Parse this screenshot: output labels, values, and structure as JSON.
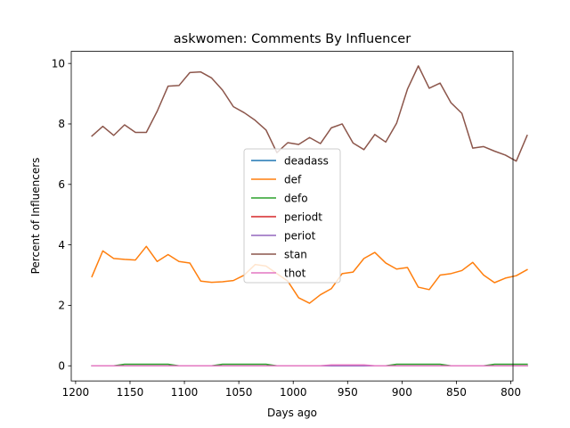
{
  "chart_data": {
    "type": "line",
    "title": "askwomen: Comments By Influencer",
    "xlabel": "Days ago",
    "ylabel": "Percent of Influencers",
    "xlim": [
      1204,
      798
    ],
    "ylim": [
      -0.5,
      10.4
    ],
    "x_ticks": [
      1200,
      1150,
      1100,
      1050,
      1000,
      950,
      900,
      850,
      800
    ],
    "y_ticks": [
      0,
      2,
      4,
      6,
      8,
      10
    ],
    "grid": false,
    "legend": "center",
    "x": [
      1185,
      1175,
      1165,
      1155,
      1145,
      1135,
      1125,
      1115,
      1105,
      1095,
      1085,
      1075,
      1065,
      1055,
      1045,
      1035,
      1025,
      1015,
      1005,
      995,
      985,
      975,
      965,
      955,
      945,
      935,
      925,
      915,
      905,
      895,
      885,
      875,
      865,
      855,
      845,
      835,
      825,
      815,
      805,
      795,
      785
    ],
    "series": [
      {
        "name": "deadass",
        "color": "#1f77b4",
        "values": [
          0,
          0,
          0,
          0,
          0,
          0,
          0,
          0,
          0,
          0,
          0,
          0,
          0,
          0,
          0,
          0,
          0,
          0,
          0,
          0,
          0,
          0,
          0,
          0,
          0,
          0,
          0,
          0,
          0,
          0,
          0,
          0,
          0,
          0,
          0,
          0,
          0,
          0,
          0,
          0,
          0
        ]
      },
      {
        "name": "def",
        "color": "#ff7f0e",
        "values": [
          2.95,
          3.8,
          3.55,
          3.52,
          3.5,
          3.95,
          3.45,
          3.68,
          3.45,
          3.4,
          2.8,
          2.76,
          2.78,
          2.82,
          3.0,
          3.35,
          3.3,
          3.05,
          2.8,
          2.25,
          2.07,
          2.35,
          2.55,
          3.05,
          3.1,
          3.55,
          3.75,
          3.4,
          3.2,
          3.25,
          2.6,
          2.52,
          3.0,
          3.05,
          3.15,
          3.42,
          3.0,
          2.75,
          2.9,
          2.98,
          3.18
        ]
      },
      {
        "name": "defo",
        "color": "#2ca02c",
        "values": [
          0.0,
          0.0,
          0.0,
          0.05,
          0.05,
          0.05,
          0.05,
          0.05,
          0.0,
          0.0,
          0.0,
          0.0,
          0.05,
          0.05,
          0.05,
          0.05,
          0.05,
          0.0,
          0.0,
          0.0,
          0.0,
          0.0,
          0.0,
          0.0,
          0.0,
          0.0,
          0.0,
          0.0,
          0.05,
          0.05,
          0.05,
          0.05,
          0.05,
          0.0,
          0.0,
          0.0,
          0.0,
          0.05,
          0.05,
          0.05,
          0.05
        ]
      },
      {
        "name": "periodt",
        "color": "#d62728",
        "values": [
          0,
          0,
          0,
          0,
          0,
          0,
          0,
          0,
          0,
          0,
          0,
          0,
          0,
          0,
          0,
          0,
          0,
          0,
          0,
          0,
          0,
          0,
          0,
          0,
          0,
          0,
          0,
          0,
          0,
          0,
          0,
          0,
          0,
          0,
          0,
          0,
          0,
          0,
          0,
          0,
          0
        ]
      },
      {
        "name": "periot",
        "color": "#9467bd",
        "values": [
          0,
          0,
          0,
          0,
          0,
          0,
          0,
          0,
          0,
          0,
          0,
          0,
          0,
          0,
          0,
          0,
          0,
          0,
          0,
          0,
          0,
          0,
          0,
          0,
          0,
          0,
          0,
          0,
          0,
          0,
          0,
          0,
          0,
          0,
          0,
          0,
          0,
          0,
          0,
          0,
          0
        ]
      },
      {
        "name": "stan",
        "color": "#8c564b",
        "values": [
          7.6,
          7.92,
          7.62,
          7.97,
          7.72,
          7.72,
          8.42,
          9.25,
          9.27,
          9.7,
          9.72,
          9.52,
          9.12,
          8.57,
          8.37,
          8.12,
          7.8,
          7.05,
          7.38,
          7.32,
          7.55,
          7.35,
          7.87,
          8.0,
          7.37,
          7.15,
          7.65,
          7.4,
          8.02,
          9.15,
          9.92,
          9.18,
          9.35,
          8.7,
          8.35,
          7.2,
          7.25,
          7.1,
          6.97,
          6.77,
          7.62
        ]
      },
      {
        "name": "thot",
        "color": "#e377c2",
        "values": [
          0.0,
          0.0,
          0.0,
          0.0,
          0.0,
          0.0,
          0.0,
          0.0,
          0.0,
          0.0,
          0.0,
          0.0,
          0.0,
          0.0,
          0.0,
          0.0,
          0.0,
          0.0,
          0.0,
          0.0,
          0.0,
          0.0,
          0.03,
          0.03,
          0.03,
          0.03,
          0.0,
          0.0,
          0.0,
          0.0,
          0.0,
          0.0,
          0.0,
          0.0,
          0.0,
          0.0,
          0.0,
          0.0,
          0.0,
          0.0,
          0.0
        ]
      }
    ]
  }
}
